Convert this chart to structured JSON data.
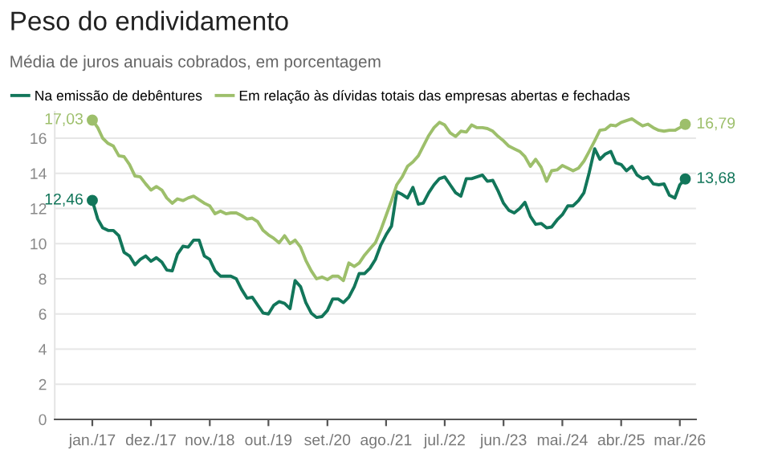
{
  "chart_data": {
    "type": "line",
    "title": "Peso do endividamento",
    "subtitle": "Média de juros anuais cobrados, em porcentagem",
    "x": [
      "2017-01",
      "2017-02",
      "2017-03",
      "2017-04",
      "2017-05",
      "2017-06",
      "2017-07",
      "2017-08",
      "2017-09",
      "2017-10",
      "2017-11",
      "2017-12",
      "2018-01",
      "2018-02",
      "2018-03",
      "2018-04",
      "2018-05",
      "2018-06",
      "2018-07",
      "2018-08",
      "2018-09",
      "2018-10",
      "2018-11",
      "2018-12",
      "2019-01",
      "2019-02",
      "2019-03",
      "2019-04",
      "2019-05",
      "2019-06",
      "2019-07",
      "2019-08",
      "2019-09",
      "2019-10",
      "2019-11",
      "2019-12",
      "2020-01",
      "2020-02",
      "2020-03",
      "2020-04",
      "2020-05",
      "2020-06",
      "2020-07",
      "2020-08",
      "2020-09",
      "2020-10",
      "2020-11",
      "2020-12",
      "2021-01",
      "2021-02",
      "2021-03",
      "2021-04",
      "2021-05",
      "2021-06",
      "2021-07",
      "2021-08",
      "2021-09",
      "2021-10",
      "2021-11",
      "2021-12",
      "2022-01",
      "2022-02",
      "2022-03",
      "2022-04",
      "2022-05",
      "2022-06",
      "2022-07",
      "2022-08",
      "2022-09",
      "2022-10",
      "2022-11",
      "2022-12",
      "2023-01",
      "2023-02",
      "2023-03",
      "2023-04",
      "2023-05",
      "2023-06",
      "2023-07",
      "2023-08",
      "2023-09",
      "2023-10",
      "2023-11",
      "2023-12",
      "2024-01",
      "2024-02",
      "2024-03",
      "2024-04",
      "2024-05",
      "2024-06",
      "2024-07",
      "2024-08",
      "2024-09",
      "2024-10",
      "2024-11",
      "2024-12",
      "2025-01",
      "2025-02",
      "2025-03",
      "2025-04",
      "2025-05",
      "2025-06",
      "2025-07",
      "2025-08",
      "2025-09",
      "2025-10",
      "2025-11",
      "2025-12",
      "2026-01",
      "2026-02",
      "2026-03",
      "2026-04"
    ],
    "series": [
      {
        "name": "Na emissão de debêntures",
        "color": "#12765a",
        "values": [
          12.46,
          11.4,
          10.9,
          10.75,
          10.75,
          10.45,
          9.5,
          9.3,
          8.8,
          9.1,
          9.3,
          9.0,
          9.2,
          8.95,
          8.5,
          8.45,
          9.4,
          9.85,
          9.8,
          10.2,
          10.2,
          9.3,
          9.1,
          8.45,
          8.15,
          8.15,
          8.15,
          8.0,
          7.4,
          6.9,
          6.95,
          6.5,
          6.05,
          6.0,
          6.5,
          6.7,
          6.6,
          6.3,
          7.9,
          7.55,
          6.65,
          6.05,
          5.8,
          5.85,
          6.2,
          6.85,
          6.85,
          6.65,
          6.95,
          7.55,
          8.3,
          8.3,
          8.6,
          9.1,
          9.9,
          10.5,
          11.0,
          12.95,
          12.8,
          12.6,
          13.2,
          12.25,
          12.3,
          12.9,
          13.35,
          13.7,
          13.8,
          13.35,
          12.9,
          12.7,
          13.7,
          13.7,
          13.8,
          13.9,
          13.55,
          13.6,
          13.0,
          12.3,
          11.9,
          11.75,
          12.0,
          12.35,
          11.55,
          11.1,
          11.15,
          10.9,
          10.95,
          11.35,
          11.65,
          12.15,
          12.15,
          12.45,
          12.9,
          14.05,
          15.4,
          14.8,
          15.1,
          15.25,
          14.6,
          14.5,
          14.15,
          14.4,
          13.9,
          13.7,
          13.8,
          13.4,
          13.35,
          13.4,
          12.75,
          12.6,
          13.35,
          13.68
        ]
      },
      {
        "name": "Em relação às dívidas totais das empresas abertas e fechadas",
        "color": "#9dbf6b",
        "values": [
          17.03,
          16.6,
          16.0,
          15.7,
          15.55,
          15.0,
          14.95,
          14.5,
          13.85,
          13.8,
          13.4,
          13.05,
          13.25,
          13.05,
          12.6,
          12.3,
          12.55,
          12.45,
          12.6,
          12.7,
          12.5,
          12.3,
          12.15,
          11.7,
          11.85,
          11.7,
          11.75,
          11.75,
          11.6,
          11.4,
          11.45,
          11.25,
          10.75,
          10.5,
          10.3,
          10.05,
          10.45,
          10.0,
          10.2,
          9.8,
          9.05,
          8.45,
          8.0,
          8.1,
          7.95,
          8.15,
          8.15,
          7.9,
          8.9,
          8.7,
          8.9,
          9.35,
          9.7,
          10.05,
          10.75,
          11.6,
          12.45,
          13.35,
          13.8,
          14.4,
          14.65,
          15.0,
          15.55,
          16.15,
          16.6,
          16.9,
          16.75,
          16.3,
          16.1,
          16.4,
          16.35,
          16.75,
          16.6,
          16.6,
          16.55,
          16.4,
          16.1,
          15.85,
          15.55,
          15.4,
          15.25,
          14.95,
          14.4,
          14.8,
          14.35,
          13.55,
          14.15,
          14.2,
          14.45,
          14.3,
          14.15,
          14.3,
          14.7,
          15.25,
          15.85,
          16.45,
          16.5,
          16.75,
          16.7,
          16.9,
          17.0,
          17.1,
          16.9,
          16.7,
          16.8,
          16.6,
          16.45,
          16.4,
          16.45,
          16.45,
          16.6,
          16.79
        ]
      }
    ],
    "annotations": [
      {
        "text": "12,46",
        "x": "2017-01",
        "y": 12.46
      },
      {
        "text": "17,03",
        "x": "2017-01",
        "y": 17.03
      },
      {
        "text": "13,68",
        "x": "2026-04",
        "y": 13.68
      },
      {
        "text": "16,79",
        "x": "2026-04",
        "y": 16.79
      }
    ],
    "xlim": [
      "2016-06",
      "2026-06"
    ],
    "xticks": [
      {
        "value": "2017-01",
        "label": "jan./17"
      },
      {
        "value": "2017-12",
        "label": "dez./17"
      },
      {
        "value": "2018-11",
        "label": "nov./18"
      },
      {
        "value": "2019-10",
        "label": "out./19"
      },
      {
        "value": "2020-09",
        "label": "set./20"
      },
      {
        "value": "2021-08",
        "label": "ago./21"
      },
      {
        "value": "2022-07",
        "label": "jul./22"
      },
      {
        "value": "2023-06",
        "label": "jun./23"
      },
      {
        "value": "2024-05",
        "label": "mai./24"
      },
      {
        "value": "2025-04",
        "label": "abr./25"
      },
      {
        "value": "2026-03",
        "label": "mar./26"
      }
    ],
    "ylim": [
      0,
      17.5
    ],
    "yticks": [
      0,
      2,
      4,
      6,
      8,
      10,
      12,
      14,
      16
    ],
    "grid": "y",
    "legend": "top left",
    "marker": "none",
    "line_style": "solid"
  }
}
